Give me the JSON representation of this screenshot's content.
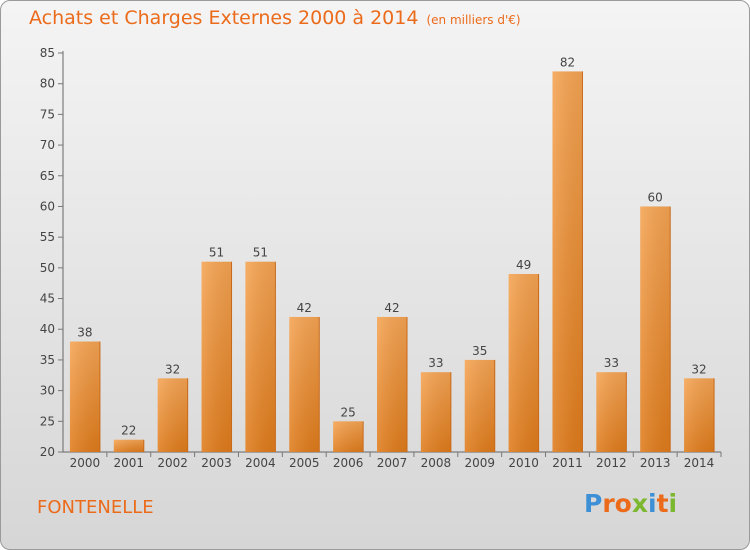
{
  "header": {
    "title": "Achats et Charges Externes 2000 à 2014",
    "unit": "(en milliers d'€)"
  },
  "footer": {
    "commune": "FONTENELLE",
    "logo": "Proxiti"
  },
  "colors": {
    "title": "#ec6b1b",
    "bar_light": "#f5a453",
    "bar_dark": "#e07d1e",
    "axis": "#555555",
    "grid_tick": "#777777",
    "logo_letters": [
      "#3d8fd6",
      "#ec6b1b",
      "#ec6b1b",
      "#7cb82f",
      "#3d8fd6",
      "#ec6b1b",
      "#7cb82f"
    ]
  },
  "chart_data": {
    "type": "bar",
    "categories": [
      "2000",
      "2001",
      "2002",
      "2003",
      "2004",
      "2005",
      "2006",
      "2007",
      "2008",
      "2009",
      "2010",
      "2011",
      "2012",
      "2013",
      "2014"
    ],
    "values": [
      38,
      22,
      32,
      51,
      51,
      42,
      25,
      42,
      33,
      35,
      49,
      82,
      33,
      60,
      32
    ],
    "ylim": [
      20,
      85
    ],
    "yticks": [
      20,
      25,
      30,
      35,
      40,
      45,
      50,
      55,
      60,
      65,
      70,
      75,
      80,
      85
    ],
    "title": "Achats et Charges Externes 2000 à 2014",
    "xlabel": "",
    "ylabel": "",
    "grid": false,
    "data_labels": true
  }
}
